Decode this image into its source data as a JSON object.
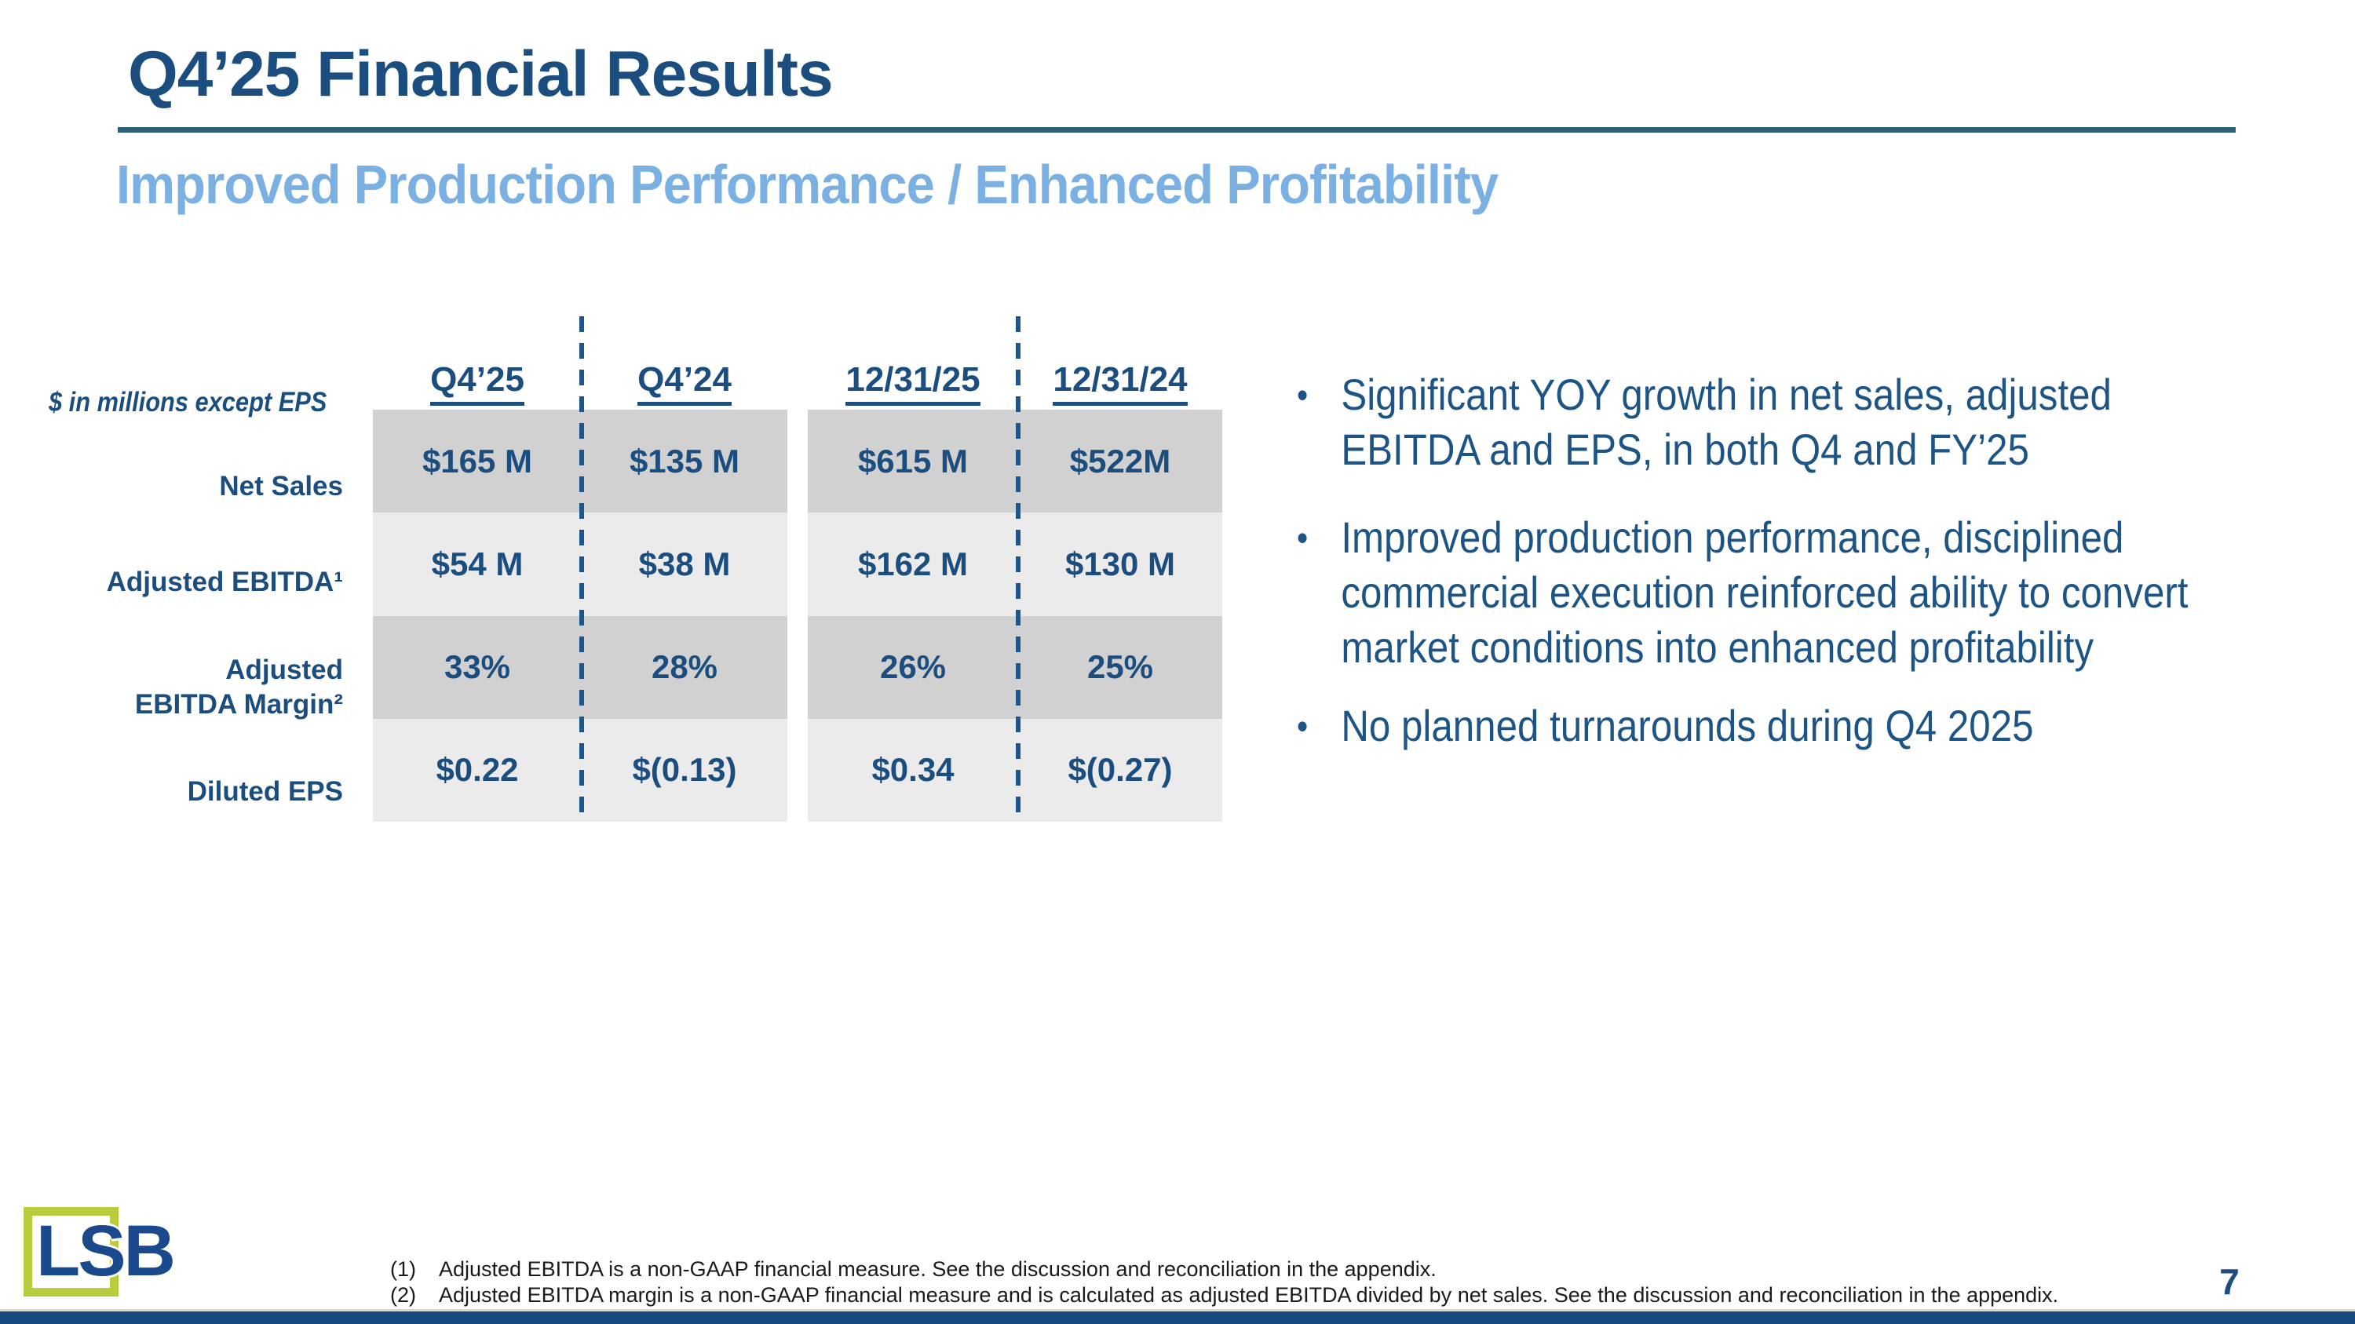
{
  "slide": {
    "title": "Q4’25 Financial Results",
    "subtitle": "Improved Production Performance / Enhanced Profitability",
    "page_number": "7",
    "logo_text": "LSB"
  },
  "table": {
    "units_note": "$ in millions except EPS",
    "columns": [
      "Q4’25",
      "Q4’24",
      "12/31/25",
      "12/31/24"
    ],
    "rows": [
      {
        "label": "Net Sales",
        "values": [
          "$165 M",
          "$135 M",
          "$615 M",
          "$522M"
        ]
      },
      {
        "label": "Adjusted EBITDA¹",
        "values": [
          "$54 M",
          "$38 M",
          "$162 M",
          "$130 M"
        ]
      },
      {
        "label": "Adjusted\nEBITDA Margin²",
        "values": [
          "33%",
          "28%",
          "26%",
          "25%"
        ]
      },
      {
        "label": "Diluted EPS",
        "values": [
          "$0.22",
          "$(0.13)",
          "$0.34",
          "$(0.27)"
        ]
      }
    ]
  },
  "bullets": [
    {
      "marker": "•",
      "text": "Significant YOY growth in net sales, adjusted\nEBITDA and EPS, in both Q4 and FY’25"
    },
    {
      "marker": "•",
      "text": "Improved production performance, disciplined\ncommercial execution reinforced ability to convert\nmarket conditions into enhanced profitability"
    },
    {
      "marker": "•",
      "text": "No planned turnarounds during Q4 2025"
    }
  ],
  "footnotes": [
    {
      "marker": "(1)",
      "text": "Adjusted EBITDA is a non-GAAP financial measure.  See the discussion and reconciliation in the appendix."
    },
    {
      "marker": "(2)",
      "text": "Adjusted EBITDA margin is a non-GAAP financial measure and is calculated as adjusted EBITDA divided by net sales. See the discussion and reconciliation in the appendix."
    }
  ],
  "colors": {
    "title_blue": "#1B4E7F",
    "subtitle_blue": "#7BB0E2",
    "rule_teal": "#2E5F78",
    "bullet_blue": "#1D5486",
    "bar_navy": "#15497F",
    "logo_green": "#B9CC3E",
    "logo_blue": "#1A4A8C",
    "row_dark_gray": "#D2D1D1",
    "row_light_gray": "#ECEBEB",
    "dash_blue": "#1D568C"
  }
}
